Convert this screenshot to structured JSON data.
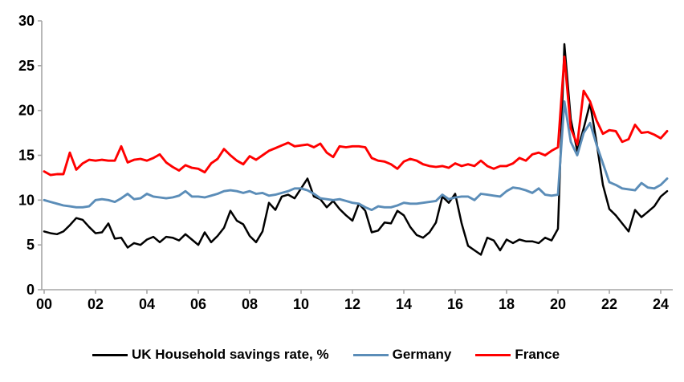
{
  "chart_data": {
    "type": "line",
    "title": "",
    "xlabel": "",
    "ylabel": "",
    "x_axis": {
      "tick_labels": [
        "00",
        "02",
        "04",
        "06",
        "08",
        "10",
        "12",
        "14",
        "16",
        "18",
        "20",
        "22",
        "24"
      ],
      "start": "2000Q1",
      "end": "2024Q2",
      "frequency": "quarterly"
    },
    "y_axis": {
      "ticks": [
        0,
        5,
        10,
        15,
        20,
        25,
        30
      ],
      "min": 0,
      "max": 30
    },
    "grid": false,
    "legend_position": "bottom",
    "axis_color": "#A6A6A6",
    "series": [
      {
        "name": "UK Household savings rate, %",
        "color": "#000000",
        "values": [
          6.5,
          6.3,
          6.2,
          6.5,
          7.2,
          8.0,
          7.8,
          7.0,
          6.3,
          6.4,
          7.4,
          5.7,
          5.8,
          4.7,
          5.2,
          5.0,
          5.6,
          5.9,
          5.3,
          5.9,
          5.8,
          5.5,
          6.2,
          5.6,
          5.0,
          6.4,
          5.3,
          6.0,
          6.9,
          8.8,
          7.7,
          7.3,
          6.0,
          5.3,
          6.5,
          9.7,
          8.9,
          10.4,
          10.6,
          10.2,
          11.3,
          12.4,
          10.4,
          10.1,
          9.2,
          9.9,
          9.0,
          8.3,
          7.7,
          9.6,
          8.8,
          6.4,
          6.6,
          7.5,
          7.4,
          8.8,
          8.3,
          7.0,
          6.1,
          5.8,
          6.4,
          7.5,
          10.4,
          9.7,
          10.7,
          7.4,
          4.9,
          4.4,
          3.9,
          5.8,
          5.5,
          4.4,
          5.6,
          5.2,
          5.6,
          5.4,
          5.4,
          5.2,
          5.8,
          5.5,
          6.8,
          27.4,
          19.0,
          15.5,
          18.0,
          20.8,
          16.5,
          11.7,
          9.0,
          8.3,
          7.4,
          6.5,
          8.9,
          8.1,
          8.7,
          9.3,
          10.4,
          11.0
        ]
      },
      {
        "name": "Germany",
        "color": "#5B8DB8",
        "values": [
          10.0,
          9.8,
          9.6,
          9.4,
          9.3,
          9.2,
          9.2,
          9.3,
          10.0,
          10.1,
          10.0,
          9.8,
          10.2,
          10.7,
          10.1,
          10.2,
          10.7,
          10.4,
          10.3,
          10.2,
          10.3,
          10.5,
          11.0,
          10.4,
          10.4,
          10.3,
          10.5,
          10.7,
          11.0,
          11.1,
          11.0,
          10.8,
          11.0,
          10.7,
          10.8,
          10.5,
          10.6,
          10.8,
          11.0,
          11.3,
          11.3,
          11.1,
          10.7,
          10.2,
          10.1,
          10.0,
          10.1,
          9.9,
          9.7,
          9.6,
          9.2,
          8.9,
          9.3,
          9.2,
          9.2,
          9.4,
          9.7,
          9.6,
          9.6,
          9.7,
          9.8,
          9.9,
          10.6,
          10.1,
          10.3,
          10.4,
          10.4,
          10.0,
          10.7,
          10.6,
          10.5,
          10.4,
          11.0,
          11.4,
          11.3,
          11.1,
          10.8,
          11.3,
          10.6,
          10.5,
          10.6,
          21.0,
          16.5,
          15.0,
          17.5,
          18.6,
          16.2,
          14.1,
          12.0,
          11.7,
          11.3,
          11.2,
          11.1,
          11.9,
          11.4,
          11.3,
          11.7,
          12.4
        ]
      },
      {
        "name": "France",
        "color": "#FF0000",
        "values": [
          13.2,
          12.8,
          12.9,
          12.9,
          15.3,
          13.4,
          14.1,
          14.5,
          14.4,
          14.5,
          14.4,
          14.4,
          16.0,
          14.2,
          14.5,
          14.6,
          14.4,
          14.7,
          15.1,
          14.2,
          13.7,
          13.3,
          13.9,
          13.6,
          13.5,
          13.1,
          14.1,
          14.6,
          15.7,
          15.0,
          14.4,
          14.0,
          14.9,
          14.5,
          15.0,
          15.5,
          15.8,
          16.1,
          16.4,
          16.0,
          16.1,
          16.2,
          15.9,
          16.3,
          15.3,
          14.8,
          16.0,
          15.9,
          16.0,
          16.0,
          15.9,
          14.7,
          14.4,
          14.3,
          14.0,
          13.5,
          14.3,
          14.6,
          14.4,
          14.0,
          13.8,
          13.7,
          13.8,
          13.6,
          14.1,
          13.8,
          14.0,
          13.8,
          14.4,
          13.8,
          13.5,
          13.8,
          13.8,
          14.1,
          14.7,
          14.4,
          15.1,
          15.3,
          15.0,
          15.5,
          15.9,
          26.0,
          18.0,
          16.2,
          22.2,
          21.0,
          18.9,
          17.4,
          17.8,
          17.7,
          16.5,
          16.8,
          18.4,
          17.5,
          17.6,
          17.3,
          16.9,
          17.7
        ]
      }
    ]
  },
  "legend": {
    "items": [
      {
        "label": "UK Household savings rate, %",
        "color": "#000000"
      },
      {
        "label": "Germany",
        "color": "#5B8DB8"
      },
      {
        "label": "France",
        "color": "#FF0000"
      }
    ]
  }
}
